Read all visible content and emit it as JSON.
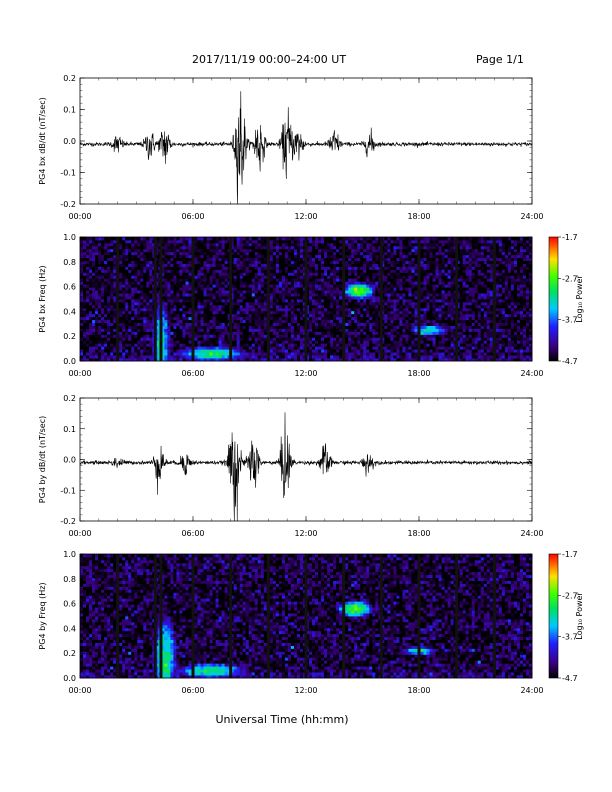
{
  "header": {
    "title": "2017/11/19  00:00–24:00 UT",
    "page": "Page 1/1"
  },
  "footer": {
    "xlabel": "Universal Time (hh:mm)"
  },
  "chart_data": [
    {
      "type": "line",
      "ylabel": "PG4 bx dB/dt (nT/sec)",
      "xlim": [
        0,
        24
      ],
      "ylim": [
        -0.2,
        0.2
      ],
      "yticks": [
        "-0.2",
        "-0.1",
        "0.0",
        "0.1",
        "0.2"
      ],
      "xticks": [
        "00:00",
        "06:00",
        "12:00",
        "18:00",
        "24:00"
      ],
      "bursts": [
        {
          "t": 2.0,
          "amp": 0.03
        },
        {
          "t": 3.7,
          "amp": 0.05
        },
        {
          "t": 4.5,
          "amp": 0.07
        },
        {
          "t": 8.5,
          "amp": 0.2
        },
        {
          "t": 9.5,
          "amp": 0.1
        },
        {
          "t": 11.0,
          "amp": 0.12
        },
        {
          "t": 11.6,
          "amp": 0.06
        },
        {
          "t": 13.5,
          "amp": 0.05
        },
        {
          "t": 15.4,
          "amp": 0.04
        }
      ]
    },
    {
      "type": "heatmap",
      "ylabel": "PG4 bx Freq (Hz)",
      "xlim": [
        0,
        24
      ],
      "ylim": [
        0,
        1.0
      ],
      "yticks": [
        "0.0",
        "0.2",
        "0.4",
        "0.6",
        "0.8",
        "1.0"
      ],
      "xticks": [
        "00:00",
        "06:00",
        "12:00",
        "18:00",
        "24:00"
      ],
      "colorbar": {
        "label": "Log₁₀ Power",
        "range": [
          -4.7,
          -1.7
        ],
        "ticks": [
          "-1.7",
          "-2.7",
          "-3.7",
          "-4.7"
        ]
      },
      "gaps_hours": [
        2,
        4,
        4.3,
        6,
        8,
        10,
        12,
        14,
        16,
        18,
        20,
        22
      ],
      "features": [
        {
          "t": 14.8,
          "f": 0.57,
          "dt": 0.6,
          "df": 0.05,
          "level": -2.6
        },
        {
          "t": 18.5,
          "f": 0.25,
          "dt": 0.8,
          "df": 0.04,
          "level": -3.2
        },
        {
          "t": 4.3,
          "f": 0.15,
          "dt": 0.4,
          "df": 0.3,
          "level": -3.2
        },
        {
          "t": 7.0,
          "f": 0.06,
          "dt": 1.5,
          "df": 0.05,
          "level": -3.0
        }
      ]
    },
    {
      "type": "line",
      "ylabel": "PG4 by dB/dt (nT/sec)",
      "xlim": [
        0,
        24
      ],
      "ylim": [
        -0.2,
        0.2
      ],
      "yticks": [
        "-0.2",
        "-0.1",
        "0.0",
        "0.1",
        "0.2"
      ],
      "xticks": [
        "00:00",
        "06:00",
        "12:00",
        "18:00",
        "24:00"
      ],
      "bursts": [
        {
          "t": 2.0,
          "amp": 0.02
        },
        {
          "t": 4.2,
          "amp": 0.07
        },
        {
          "t": 5.6,
          "amp": 0.04
        },
        {
          "t": 8.2,
          "amp": 0.2
        },
        {
          "t": 9.2,
          "amp": 0.1
        },
        {
          "t": 10.9,
          "amp": 0.13
        },
        {
          "t": 13.0,
          "amp": 0.06
        },
        {
          "t": 15.3,
          "amp": 0.04
        }
      ]
    },
    {
      "type": "heatmap",
      "ylabel": "PG4 by Freq (Hz)",
      "xlim": [
        0,
        24
      ],
      "ylim": [
        0,
        1.0
      ],
      "yticks": [
        "0.0",
        "0.2",
        "0.4",
        "0.6",
        "0.8",
        "1.0"
      ],
      "xticks": [
        "00:00",
        "06:00",
        "12:00",
        "18:00",
        "24:00"
      ],
      "colorbar": {
        "label": "Log₁₀ Power",
        "range": [
          -4.7,
          -1.7
        ],
        "ticks": [
          "-1.7",
          "-2.7",
          "-3.7",
          "-4.7"
        ]
      },
      "gaps_hours": [
        2,
        4,
        4.3,
        6,
        8,
        10,
        12,
        14,
        16,
        18,
        20,
        22
      ],
      "features": [
        {
          "t": 14.6,
          "f": 0.56,
          "dt": 0.7,
          "df": 0.05,
          "level": -2.6
        },
        {
          "t": 18.0,
          "f": 0.22,
          "dt": 0.8,
          "df": 0.03,
          "level": -3.2
        },
        {
          "t": 4.5,
          "f": 0.15,
          "dt": 0.5,
          "df": 0.3,
          "level": -3.0
        },
        {
          "t": 7.0,
          "f": 0.06,
          "dt": 1.5,
          "df": 0.05,
          "level": -3.0
        }
      ]
    }
  ]
}
